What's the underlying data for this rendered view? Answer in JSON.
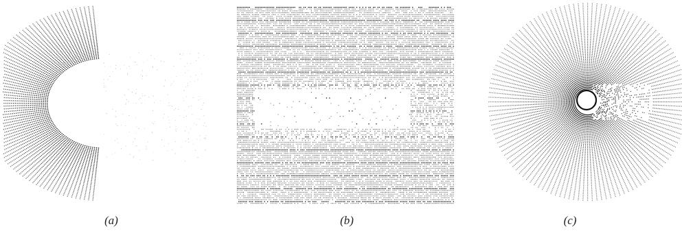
{
  "figure": {
    "panels": [
      {
        "id": "a",
        "caption": "(a)",
        "depicts": "half-annulus-grid"
      },
      {
        "id": "b",
        "caption": "(b)",
        "depicts": "rectangular-grid"
      },
      {
        "id": "c",
        "caption": "(c)",
        "depicts": "full-annulus-grid"
      }
    ],
    "colors": {
      "ink": "#111111",
      "background": "#ffffff"
    }
  }
}
